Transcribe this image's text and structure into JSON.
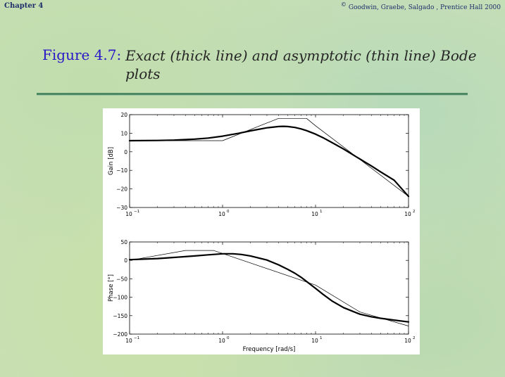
{
  "header": {
    "chapter": "Chapter 4",
    "copyright_symbol": "©",
    "copyright": "Goodwin, Graebe, Salgado , Prentice Hall 2000"
  },
  "title": {
    "label": "Figure 4.7:",
    "text": "Exact (thick line) and asymptotic (thin line) Bode plots"
  },
  "chart_data": [
    {
      "type": "line",
      "ylabel": "Gain [dB]",
      "xlabel": "",
      "xscale": "log",
      "xlim": [
        0.1,
        100
      ],
      "ylim": [
        -30,
        20
      ],
      "yticks": [
        20,
        10,
        0,
        -10,
        -20,
        -30
      ],
      "ytick_labels": [
        "20",
        "10",
        "0",
        "−10",
        "−20",
        "−30"
      ],
      "xticks": [
        0.1,
        1,
        10,
        100
      ],
      "xtick_labels": [
        [
          "10",
          "−1"
        ],
        [
          "10",
          "0"
        ],
        [
          "10",
          "1"
        ],
        [
          "10",
          "2"
        ]
      ],
      "grid": false,
      "series": [
        {
          "style": "thick",
          "x": [
            0.1,
            0.2,
            0.3,
            0.5,
            0.7,
            1,
            1.5,
            2,
            3,
            4,
            4.5,
            5,
            6,
            7,
            8,
            10,
            12,
            15,
            20,
            30,
            40,
            50,
            70,
            100
          ],
          "y": [
            6.0,
            6.1,
            6.3,
            6.8,
            7.4,
            8.4,
            10.0,
            11.3,
            12.9,
            13.6,
            13.7,
            13.6,
            13.1,
            12.3,
            11.4,
            9.5,
            7.6,
            5.0,
            1.5,
            -3.9,
            -7.7,
            -10.8,
            -15.3,
            -24.0
          ]
        },
        {
          "style": "thin",
          "x": [
            0.1,
            1,
            4,
            8,
            10,
            100
          ],
          "y": [
            6,
            6,
            18,
            18,
            14,
            -24
          ]
        }
      ]
    },
    {
      "type": "line",
      "ylabel": "Phase [°]",
      "xlabel": "Frequency [rad/s]",
      "xscale": "log",
      "xlim": [
        0.1,
        100
      ],
      "ylim": [
        -200,
        50
      ],
      "yticks": [
        50,
        0,
        -50,
        -100,
        -150,
        -200
      ],
      "ytick_labels": [
        "50",
        "0",
        "−50",
        "−100",
        "−150",
        "−200"
      ],
      "xticks": [
        0.1,
        1,
        10,
        100
      ],
      "xtick_labels": [
        [
          "10",
          "−1"
        ],
        [
          "10",
          "0"
        ],
        [
          "10",
          "1"
        ],
        [
          "10",
          "2"
        ]
      ],
      "grid": false,
      "series": [
        {
          "style": "thick",
          "x": [
            0.1,
            0.2,
            0.3,
            0.5,
            0.7,
            1,
            1.3,
            1.6,
            2,
            3,
            4,
            5,
            6,
            7,
            8,
            10,
            12,
            15,
            20,
            30,
            40,
            50,
            70,
            100
          ],
          "y": [
            2,
            5,
            8,
            12,
            15,
            18,
            18,
            16,
            12,
            1,
            -12,
            -24,
            -35,
            -46,
            -57,
            -76,
            -92,
            -110,
            -128,
            -146,
            -153,
            -157,
            -162,
            -167
          ]
        },
        {
          "style": "thin",
          "x": [
            0.1,
            0.4,
            0.8,
            10,
            30,
            100
          ],
          "y": [
            0,
            27,
            27,
            -67,
            -140,
            -178
          ]
        }
      ]
    }
  ]
}
